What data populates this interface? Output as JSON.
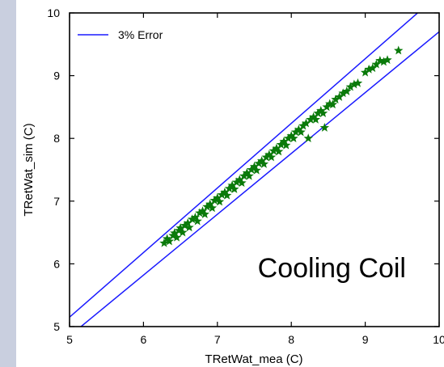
{
  "chart_data": {
    "type": "scatter",
    "title": "",
    "xlabel": "TRetWat_mea (C)",
    "ylabel": "TRetWat_sim (C)",
    "xlim": [
      5,
      10
    ],
    "ylim": [
      5,
      10
    ],
    "xticks": [
      5,
      6,
      7,
      8,
      9,
      10
    ],
    "yticks": [
      5,
      6,
      7,
      8,
      9,
      10
    ],
    "grid": false,
    "legend": {
      "position": "top-left",
      "entries": [
        "3% Error"
      ]
    },
    "annotation": "Cooling Coil",
    "error_lines": {
      "name": "3% Error",
      "color": "#1a1aff",
      "factors": [
        1.03,
        0.97
      ]
    },
    "series": [
      {
        "marker": "star",
        "color": "#0a7a0a",
        "points": [
          [
            6.28,
            6.33
          ],
          [
            6.32,
            6.4
          ],
          [
            6.35,
            6.36
          ],
          [
            6.4,
            6.45
          ],
          [
            6.42,
            6.49
          ],
          [
            6.45,
            6.42
          ],
          [
            6.48,
            6.53
          ],
          [
            6.5,
            6.57
          ],
          [
            6.53,
            6.5
          ],
          [
            6.56,
            6.61
          ],
          [
            6.6,
            6.65
          ],
          [
            6.62,
            6.58
          ],
          [
            6.66,
            6.71
          ],
          [
            6.7,
            6.74
          ],
          [
            6.73,
            6.68
          ],
          [
            6.76,
            6.81
          ],
          [
            6.8,
            6.84
          ],
          [
            6.83,
            6.79
          ],
          [
            6.86,
            6.91
          ],
          [
            6.9,
            6.95
          ],
          [
            6.93,
            6.89
          ],
          [
            6.96,
            7.01
          ],
          [
            7.0,
            7.05
          ],
          [
            7.03,
            6.99
          ],
          [
            7.06,
            7.1
          ],
          [
            7.1,
            7.14
          ],
          [
            7.13,
            7.09
          ],
          [
            7.16,
            7.2
          ],
          [
            7.2,
            7.25
          ],
          [
            7.23,
            7.19
          ],
          [
            7.26,
            7.3
          ],
          [
            7.3,
            7.34
          ],
          [
            7.33,
            7.29
          ],
          [
            7.36,
            7.4
          ],
          [
            7.4,
            7.45
          ],
          [
            7.43,
            7.4
          ],
          [
            7.46,
            7.5
          ],
          [
            7.5,
            7.55
          ],
          [
            7.53,
            7.49
          ],
          [
            7.56,
            7.6
          ],
          [
            7.6,
            7.64
          ],
          [
            7.63,
            7.59
          ],
          [
            7.66,
            7.7
          ],
          [
            7.7,
            7.74
          ],
          [
            7.73,
            7.7
          ],
          [
            7.76,
            7.8
          ],
          [
            7.8,
            7.84
          ],
          [
            7.83,
            7.79
          ],
          [
            7.86,
            7.9
          ],
          [
            7.9,
            7.95
          ],
          [
            7.93,
            7.89
          ],
          [
            7.96,
            8.0
          ],
          [
            8.0,
            8.04
          ],
          [
            8.03,
            8.0
          ],
          [
            8.06,
            8.1
          ],
          [
            8.1,
            8.14
          ],
          [
            8.13,
            8.1
          ],
          [
            8.16,
            8.2
          ],
          [
            8.2,
            8.24
          ],
          [
            8.23,
            8.0
          ],
          [
            8.26,
            8.3
          ],
          [
            8.3,
            8.34
          ],
          [
            8.33,
            8.3
          ],
          [
            8.36,
            8.4
          ],
          [
            8.4,
            8.44
          ],
          [
            8.43,
            8.4
          ],
          [
            8.45,
            8.17
          ],
          [
            8.48,
            8.5
          ],
          [
            8.52,
            8.55
          ],
          [
            8.56,
            8.54
          ],
          [
            8.6,
            8.62
          ],
          [
            8.65,
            8.66
          ],
          [
            8.7,
            8.72
          ],
          [
            8.75,
            8.75
          ],
          [
            8.8,
            8.82
          ],
          [
            8.85,
            8.86
          ],
          [
            8.9,
            8.88
          ],
          [
            9.0,
            9.05
          ],
          [
            9.05,
            9.1
          ],
          [
            9.1,
            9.12
          ],
          [
            9.15,
            9.18
          ],
          [
            9.2,
            9.24
          ],
          [
            9.25,
            9.22
          ],
          [
            9.3,
            9.25
          ],
          [
            9.45,
            9.4
          ]
        ]
      }
    ]
  }
}
